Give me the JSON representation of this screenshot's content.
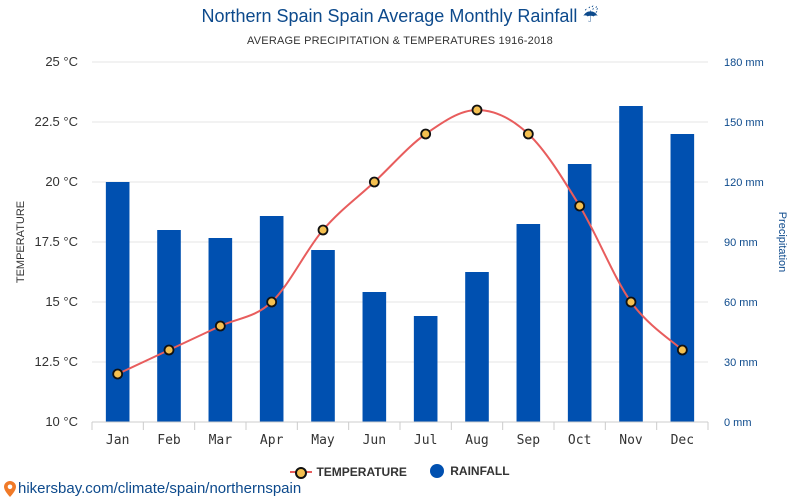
{
  "chart_data": {
    "title": "Northern Spain Spain Average Monthly Rainfall ☔",
    "subtitle": "AVERAGE PRECIPITATION & TEMPERATURES 1916-2018",
    "categories": [
      "Jan",
      "Feb",
      "Mar",
      "Apr",
      "May",
      "Jun",
      "Jul",
      "Aug",
      "Sep",
      "Oct",
      "Nov",
      "Dec"
    ],
    "series": [
      {
        "name": "TEMPERATURE",
        "type": "line",
        "axis": "left",
        "color": "#e85d5d",
        "marker_fill": "#f4c050",
        "values": [
          12,
          13,
          14,
          15,
          18,
          20,
          22,
          23,
          22,
          19,
          15,
          13
        ]
      },
      {
        "name": "RAINFALL",
        "type": "bar",
        "axis": "right",
        "color": "#0050b0",
        "values": [
          120,
          96,
          92,
          103,
          86,
          65,
          53,
          75,
          99,
          129,
          158,
          144
        ]
      }
    ],
    "y_left": {
      "label": "TEMPERATURE",
      "range": [
        10,
        25
      ],
      "ticks": [
        10,
        12.5,
        15,
        17.5,
        20,
        22.5,
        25
      ],
      "tick_labels": [
        "10 °C",
        "12.5 °C",
        "15 °C",
        "17.5 °C",
        "20 °C",
        "22.5 °C",
        "25 °C"
      ]
    },
    "y_right": {
      "label": "Precipitation",
      "range": [
        0,
        180
      ],
      "ticks": [
        0,
        30,
        60,
        90,
        120,
        150,
        180
      ],
      "tick_labels": [
        "0 mm",
        "30 mm",
        "60 mm",
        "90 mm",
        "120 mm",
        "150 mm",
        "180 mm"
      ]
    },
    "grid": true,
    "legend_position": "bottom"
  },
  "legend": {
    "temperature": "TEMPERATURE",
    "rainfall": "RAINFALL"
  },
  "source_text": "hikersbay.com/climate/spain/northernspain"
}
